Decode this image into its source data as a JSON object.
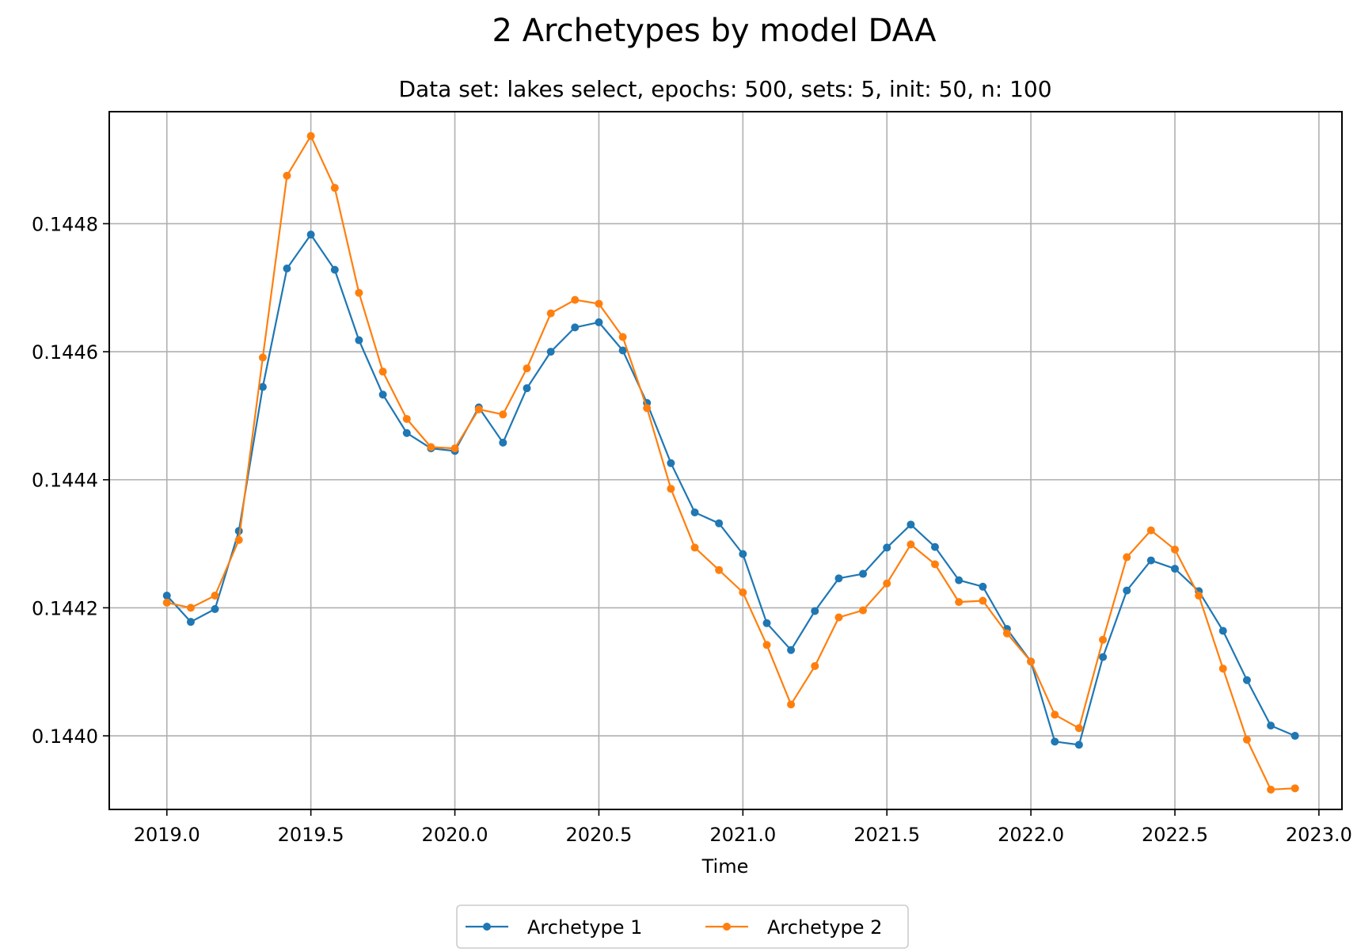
{
  "chart_data": {
    "type": "line",
    "title": "2 Archetypes by model DAA",
    "subtitle": "Data set: lakes select, epochs: 500, sets: 5, init: 50, n: 100",
    "xlabel": "Time",
    "ylabel": "",
    "xlim": [
      2018.8,
      2023.08
    ],
    "ylim": [
      0.143885,
      0.144975
    ],
    "xticks": [
      2019.0,
      2019.5,
      2020.0,
      2020.5,
      2021.0,
      2021.5,
      2022.0,
      2022.5,
      2023.0
    ],
    "xtick_labels": [
      "2019.0",
      "2019.5",
      "2020.0",
      "2020.5",
      "2021.0",
      "2021.5",
      "2022.0",
      "2022.5",
      "2023.0"
    ],
    "yticks": [
      0.144,
      0.1442,
      0.1444,
      0.1446,
      0.1448
    ],
    "ytick_labels": [
      "0.1440",
      "0.1442",
      "0.1444",
      "0.1446",
      "0.1448"
    ],
    "grid": true,
    "legend_position": "bottom-center",
    "x": [
      2019.0,
      2019.083,
      2019.167,
      2019.25,
      2019.333,
      2019.417,
      2019.5,
      2019.583,
      2019.667,
      2019.75,
      2019.833,
      2019.917,
      2020.0,
      2020.083,
      2020.167,
      2020.25,
      2020.333,
      2020.417,
      2020.5,
      2020.583,
      2020.667,
      2020.75,
      2020.833,
      2020.917,
      2021.0,
      2021.083,
      2021.167,
      2021.25,
      2021.333,
      2021.417,
      2021.5,
      2021.583,
      2021.667,
      2021.75,
      2021.833,
      2021.917,
      2022.0,
      2022.083,
      2022.167,
      2022.25,
      2022.333,
      2022.417,
      2022.5,
      2022.583,
      2022.667,
      2022.75,
      2022.833,
      2022.917
    ],
    "series": [
      {
        "name": "Archetype 1",
        "color": "#1f77b4",
        "values": [
          0.144219,
          0.144178,
          0.144198,
          0.14432,
          0.144545,
          0.14473,
          0.144783,
          0.144728,
          0.144618,
          0.144533,
          0.144473,
          0.144449,
          0.144445,
          0.144513,
          0.144458,
          0.144543,
          0.1446,
          0.144638,
          0.144646,
          0.144602,
          0.14452,
          0.144426,
          0.144349,
          0.144332,
          0.144284,
          0.144176,
          0.144134,
          0.144195,
          0.144246,
          0.144253,
          0.144294,
          0.14433,
          0.144295,
          0.144243,
          0.144233,
          0.144167,
          0.144116,
          0.143991,
          0.143986,
          0.144123,
          0.144227,
          0.144274,
          0.144261,
          0.144226,
          0.144164,
          0.144087,
          0.144016,
          0.144
        ]
      },
      {
        "name": "Archetype 2",
        "color": "#ff7f0e",
        "values": [
          0.144208,
          0.1442,
          0.144219,
          0.144306,
          0.144591,
          0.144875,
          0.144937,
          0.144856,
          0.144692,
          0.144569,
          0.144495,
          0.144451,
          0.144449,
          0.14451,
          0.144502,
          0.144574,
          0.14466,
          0.144681,
          0.144675,
          0.144623,
          0.144512,
          0.144386,
          0.144294,
          0.144259,
          0.144224,
          0.144142,
          0.144049,
          0.144109,
          0.144185,
          0.144196,
          0.144238,
          0.144299,
          0.144268,
          0.144209,
          0.144211,
          0.14416,
          0.144116,
          0.144033,
          0.144012,
          0.14415,
          0.144279,
          0.144321,
          0.144291,
          0.144219,
          0.144105,
          0.143994,
          0.143916,
          0.143918
        ]
      }
    ]
  }
}
